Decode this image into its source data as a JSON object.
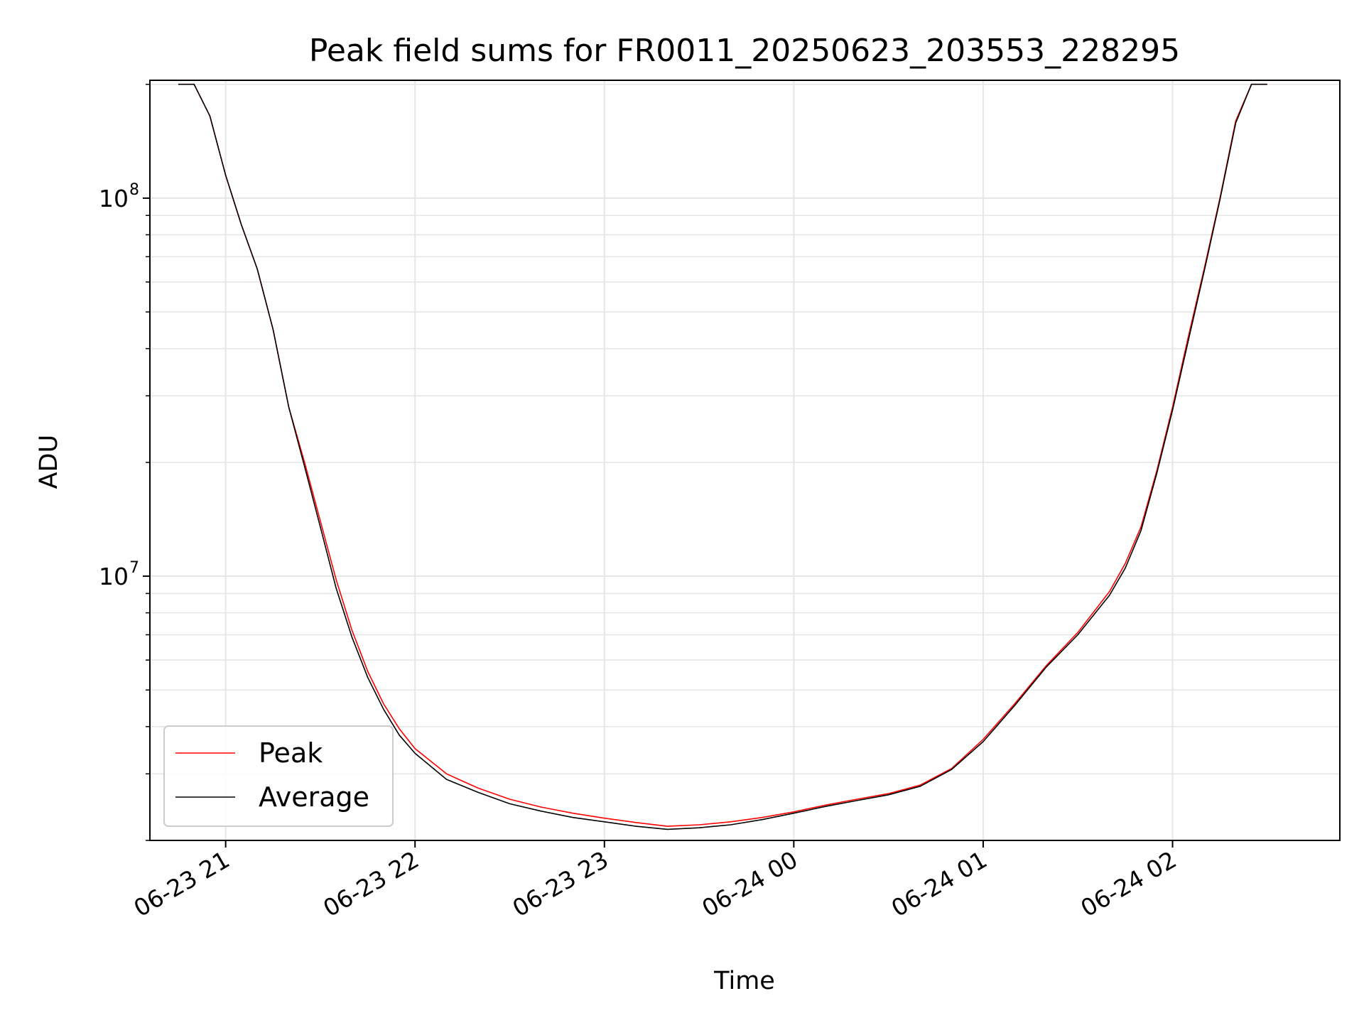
{
  "chart_data": {
    "type": "line",
    "title": "Peak field sums for FR0011_20250623_203553_228295",
    "xlabel": "Time",
    "ylabel": "ADU",
    "x_tick_labels": [
      "06-23 21",
      "06-23 22",
      "06-23 23",
      "06-24 00",
      "06-24 01",
      "06-24 02"
    ],
    "x_tick_times": [
      "2025-06-23T21:00",
      "2025-06-23T22:00",
      "2025-06-23T23:00",
      "2025-06-24T00:00",
      "2025-06-24T01:00",
      "2025-06-24T02:00"
    ],
    "y_ticks": [
      {
        "base": "10",
        "exp": "7",
        "value": 10000000
      },
      {
        "base": "10",
        "exp": "8",
        "value": 100000000
      }
    ],
    "yscale": "log",
    "xlim": [
      "2025-06-23T20:36",
      "2025-06-24T02:53"
    ],
    "ylim": [
      2000000,
      205000000
    ],
    "grid": true,
    "legend_position": "lower-left",
    "series": [
      {
        "name": "Peak",
        "color": "#ff0000",
        "x": [
          "2025-06-23T20:45",
          "2025-06-23T20:50",
          "2025-06-23T20:55",
          "2025-06-23T21:00",
          "2025-06-23T21:05",
          "2025-06-23T21:10",
          "2025-06-23T21:15",
          "2025-06-23T21:20",
          "2025-06-23T21:25",
          "2025-06-23T21:30",
          "2025-06-23T21:35",
          "2025-06-23T21:40",
          "2025-06-23T21:45",
          "2025-06-23T21:50",
          "2025-06-23T21:55",
          "2025-06-23T22:00",
          "2025-06-23T22:10",
          "2025-06-23T22:20",
          "2025-06-23T22:30",
          "2025-06-23T22:40",
          "2025-06-23T22:50",
          "2025-06-23T23:00",
          "2025-06-23T23:10",
          "2025-06-23T23:20",
          "2025-06-23T23:30",
          "2025-06-23T23:40",
          "2025-06-23T23:50",
          "2025-06-24T00:00",
          "2025-06-24T00:10",
          "2025-06-24T00:20",
          "2025-06-24T00:30",
          "2025-06-24T00:40",
          "2025-06-24T00:50",
          "2025-06-24T01:00",
          "2025-06-24T01:10",
          "2025-06-24T01:20",
          "2025-06-24T01:30",
          "2025-06-24T01:40",
          "2025-06-24T01:45",
          "2025-06-24T01:50",
          "2025-06-24T01:55",
          "2025-06-24T02:00",
          "2025-06-24T02:05",
          "2025-06-24T02:10",
          "2025-06-24T02:15",
          "2025-06-24T02:20",
          "2025-06-24T02:25",
          "2025-06-24T02:30"
        ],
        "values": [
          200000000,
          200000000,
          165000000,
          115000000,
          85000000,
          65000000,
          45000000,
          28000000,
          20000000,
          14000000,
          9800000,
          7200000,
          5600000,
          4600000,
          3950000,
          3500000,
          3000000,
          2750000,
          2570000,
          2450000,
          2360000,
          2290000,
          2230000,
          2180000,
          2200000,
          2240000,
          2300000,
          2380000,
          2480000,
          2570000,
          2660000,
          2800000,
          3100000,
          3700000,
          4600000,
          5800000,
          7100000,
          9100000,
          10800000,
          13500000,
          19000000,
          28000000,
          43000000,
          65000000,
          100000000,
          160000000,
          200000000,
          200000000
        ]
      },
      {
        "name": "Average",
        "color": "#000000",
        "x": [
          "2025-06-23T20:45",
          "2025-06-23T20:50",
          "2025-06-23T20:55",
          "2025-06-23T21:00",
          "2025-06-23T21:05",
          "2025-06-23T21:10",
          "2025-06-23T21:15",
          "2025-06-23T21:20",
          "2025-06-23T21:25",
          "2025-06-23T21:30",
          "2025-06-23T21:35",
          "2025-06-23T21:40",
          "2025-06-23T21:45",
          "2025-06-23T21:50",
          "2025-06-23T21:55",
          "2025-06-23T22:00",
          "2025-06-23T22:10",
          "2025-06-23T22:20",
          "2025-06-23T22:30",
          "2025-06-23T22:40",
          "2025-06-23T22:50",
          "2025-06-23T23:00",
          "2025-06-23T23:10",
          "2025-06-23T23:20",
          "2025-06-23T23:30",
          "2025-06-23T23:40",
          "2025-06-23T23:50",
          "2025-06-24T00:00",
          "2025-06-24T00:10",
          "2025-06-24T00:20",
          "2025-06-24T00:30",
          "2025-06-24T00:40",
          "2025-06-24T00:50",
          "2025-06-24T01:00",
          "2025-06-24T01:10",
          "2025-06-24T01:20",
          "2025-06-24T01:30",
          "2025-06-24T01:40",
          "2025-06-24T01:45",
          "2025-06-24T01:50",
          "2025-06-24T01:55",
          "2025-06-24T02:00",
          "2025-06-24T02:05",
          "2025-06-24T02:10",
          "2025-06-24T02:15",
          "2025-06-24T02:20",
          "2025-06-24T02:25",
          "2025-06-24T02:30"
        ],
        "values": [
          200000000,
          200000000,
          165000000,
          115000000,
          85000000,
          65000000,
          45000000,
          28000000,
          19500000,
          13500000,
          9300000,
          6900000,
          5400000,
          4450000,
          3800000,
          3400000,
          2900000,
          2680000,
          2500000,
          2390000,
          2300000,
          2240000,
          2180000,
          2140000,
          2160000,
          2200000,
          2270000,
          2360000,
          2460000,
          2550000,
          2640000,
          2780000,
          3080000,
          3650000,
          4550000,
          5750000,
          7000000,
          8900000,
          10500000,
          13200000,
          18700000,
          27500000,
          42000000,
          64000000,
          99000000,
          158000000,
          200000000,
          200000000
        ]
      }
    ]
  }
}
